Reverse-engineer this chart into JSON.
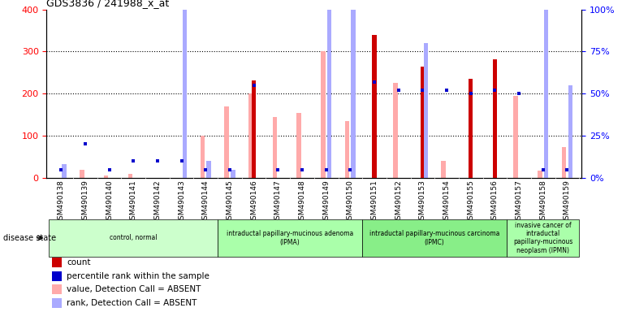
{
  "title": "GDS3836 / 241988_x_at",
  "samples": [
    "GSM490138",
    "GSM490139",
    "GSM490140",
    "GSM490141",
    "GSM490142",
    "GSM490143",
    "GSM490144",
    "GSM490145",
    "GSM490146",
    "GSM490147",
    "GSM490148",
    "GSM490149",
    "GSM490150",
    "GSM490151",
    "GSM490152",
    "GSM490153",
    "GSM490154",
    "GSM490155",
    "GSM490156",
    "GSM490157",
    "GSM490158",
    "GSM490159"
  ],
  "count": [
    0,
    0,
    0,
    0,
    0,
    0,
    0,
    0,
    232,
    0,
    0,
    0,
    0,
    340,
    0,
    265,
    0,
    235,
    282,
    0,
    0,
    0
  ],
  "percentile_rank": [
    5,
    20,
    5,
    10,
    10,
    10,
    5,
    5,
    55,
    5,
    5,
    5,
    5,
    57,
    52,
    52,
    52,
    50,
    52,
    50,
    5,
    5
  ],
  "value_absent": [
    0,
    20,
    5,
    10,
    0,
    0,
    100,
    170,
    200,
    145,
    155,
    300,
    135,
    0,
    225,
    0,
    40,
    0,
    0,
    195,
    18,
    73
  ],
  "rank_absent": [
    8,
    0,
    0,
    0,
    0,
    120,
    10,
    5,
    0,
    0,
    0,
    215,
    155,
    0,
    0,
    80,
    0,
    0,
    0,
    0,
    125,
    55
  ],
  "groups": [
    {
      "label": "control, normal",
      "start": 0,
      "end": 7,
      "color": "#ccffcc"
    },
    {
      "label": "intraductal papillary-mucinous adenoma\n(IPMA)",
      "start": 7,
      "end": 13,
      "color": "#aaffaa"
    },
    {
      "label": "intraductal papillary-mucinous carcinoma\n(IPMC)",
      "start": 13,
      "end": 19,
      "color": "#88ee88"
    },
    {
      "label": "invasive cancer of\nintraductal\npapillary-mucinous\nneoplasm (IPMN)",
      "start": 19,
      "end": 22,
      "color": "#aaffaa"
    }
  ],
  "ylim_left": [
    0,
    400
  ],
  "ylim_right": [
    0,
    100
  ],
  "yticks_left": [
    0,
    100,
    200,
    300,
    400
  ],
  "yticks_right": [
    0,
    25,
    50,
    75,
    100
  ],
  "count_color": "#cc0000",
  "percentile_color": "#0000cc",
  "value_absent_color": "#ffaaaa",
  "rank_absent_color": "#aaaaff",
  "legend_items": [
    {
      "color": "#cc0000",
      "label": "count"
    },
    {
      "color": "#0000cc",
      "label": "percentile rank within the sample"
    },
    {
      "color": "#ffaaaa",
      "label": "value, Detection Call = ABSENT"
    },
    {
      "color": "#aaaaff",
      "label": "rank, Detection Call = ABSENT"
    }
  ]
}
